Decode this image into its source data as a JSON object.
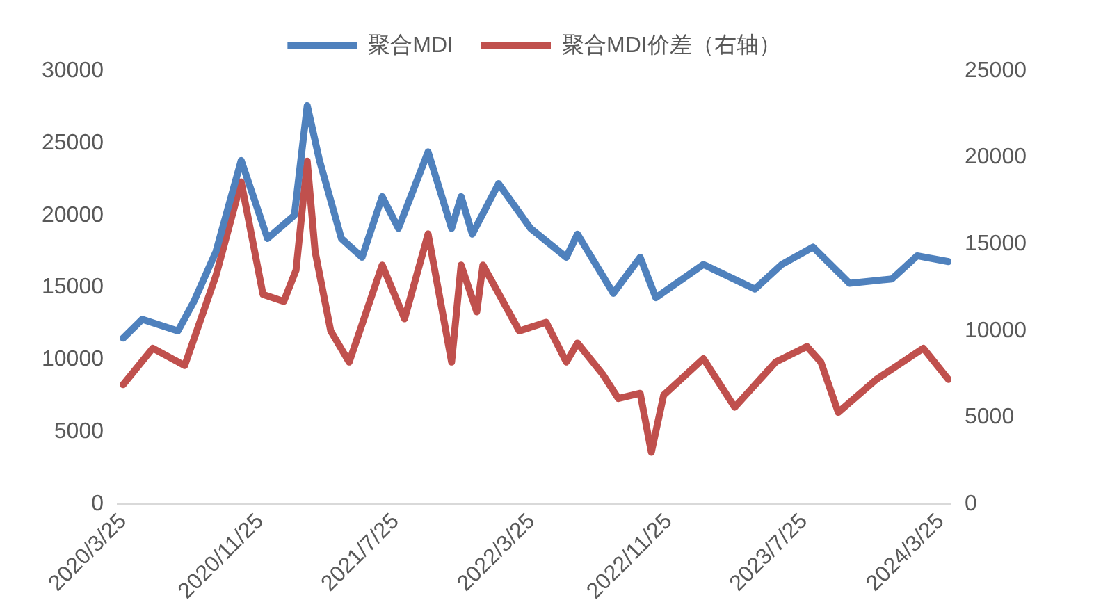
{
  "chart_data": {
    "type": "line",
    "legend": "top",
    "grid": false,
    "marker": "none",
    "line_style": "solid",
    "xlim": [
      "2020-03-15",
      "2024-04-12"
    ],
    "xticks": [
      {
        "value": "2020-03-25",
        "label": "2020/3/25"
      },
      {
        "value": "2020-11-25",
        "label": "2020/11/25"
      },
      {
        "value": "2021-07-25",
        "label": "2021/7/25"
      },
      {
        "value": "2022-03-25",
        "label": "2022/3/25"
      },
      {
        "value": "2022-11-25",
        "label": "2022/11/25"
      },
      {
        "value": "2023-07-25",
        "label": "2023/7/25"
      },
      {
        "value": "2024-03-25",
        "label": "2024/3/25"
      }
    ],
    "ylim": [
      0,
      30000
    ],
    "yticks": [
      0,
      5000,
      10000,
      15000,
      20000,
      25000,
      30000
    ],
    "y2lim": [
      0,
      25000
    ],
    "y2ticks": [
      0,
      5000,
      10000,
      15000,
      20000,
      25000
    ],
    "series": [
      {
        "name": "聚合MDI",
        "color": "#4f81bd",
        "x": [
          "2020-03-25",
          "2020-04-28",
          "2020-07-01",
          "2020-07-29",
          "2020-09-07",
          "2020-10-22",
          "2020-12-08",
          "2021-01-25",
          "2021-02-17",
          "2021-03-11",
          "2021-04-19",
          "2021-05-26",
          "2021-07-01",
          "2021-07-30",
          "2021-09-21",
          "2021-11-02",
          "2021-11-19",
          "2021-12-09",
          "2022-01-25",
          "2022-03-23",
          "2022-05-26",
          "2022-06-15",
          "2022-08-18",
          "2022-10-05",
          "2022-11-02",
          "2023-01-26",
          "2023-04-28",
          "2023-06-15",
          "2023-08-10",
          "2023-10-14",
          "2023-12-29",
          "2024-02-12",
          "2024-04-08"
        ],
        "values": [
          11500,
          12800,
          12000,
          14000,
          17500,
          23800,
          18400,
          20000,
          27600,
          23800,
          18400,
          17100,
          21300,
          19100,
          24400,
          19100,
          21300,
          18700,
          22200,
          19100,
          17100,
          18700,
          14600,
          17100,
          14300,
          16600,
          14900,
          16600,
          17800,
          15300,
          15600,
          17200,
          16800
        ]
      },
      {
        "name": "聚合MDI价差（右轴）",
        "color": "#c0504d",
        "axis": "y2",
        "x": [
          "2020-03-25",
          "2020-05-17",
          "2020-07-13",
          "2020-09-07",
          "2020-10-22",
          "2020-11-30",
          "2021-01-06",
          "2021-01-28",
          "2021-02-17",
          "2021-03-03",
          "2021-03-31",
          "2021-05-03",
          "2021-07-01",
          "2021-08-10",
          "2021-09-21",
          "2021-11-02",
          "2021-11-19",
          "2021-12-17",
          "2021-12-28",
          "2022-03-03",
          "2022-04-20",
          "2022-05-26",
          "2022-06-15",
          "2022-07-30",
          "2022-08-27",
          "2022-10-05",
          "2022-10-25",
          "2022-11-16",
          "2023-01-26",
          "2023-03-23",
          "2023-06-04",
          "2023-07-30",
          "2023-08-24",
          "2023-09-24",
          "2023-12-01",
          "2024-02-23",
          "2024-04-08"
        ],
        "values": [
          6900,
          9000,
          8000,
          13200,
          18600,
          12100,
          11700,
          13500,
          19800,
          14600,
          10000,
          8200,
          13800,
          10700,
          15600,
          8200,
          13800,
          11100,
          13800,
          10000,
          10500,
          8200,
          9300,
          7500,
          6100,
          6400,
          3000,
          6300,
          8400,
          5600,
          8200,
          9100,
          8200,
          5300,
          7200,
          9000,
          7200
        ]
      }
    ]
  }
}
